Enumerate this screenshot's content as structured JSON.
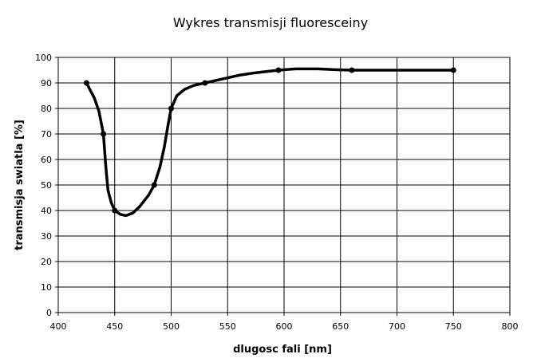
{
  "chart_data": {
    "type": "line",
    "title": "Wykres transmisji fluoresceiny",
    "xlabel": "dlugosc fali [nm]",
    "ylabel": "transmisja swiatla [%]",
    "xlim": [
      400,
      800
    ],
    "ylim": [
      0,
      100
    ],
    "x_ticks": [
      "400",
      "450",
      "500",
      "550",
      "600",
      "650",
      "700",
      "750",
      "800"
    ],
    "y_ticks": [
      "0",
      "10",
      "20",
      "30",
      "40",
      "50",
      "60",
      "70",
      "80",
      "90",
      "100"
    ],
    "grid": true,
    "legend": "none",
    "line_color": "#000000",
    "series": [
      {
        "markers": [
          {
            "x": 425,
            "y": 90
          },
          {
            "x": 440,
            "y": 70
          },
          {
            "x": 450,
            "y": 40
          },
          {
            "x": 485,
            "y": 50
          },
          {
            "x": 500,
            "y": 80
          },
          {
            "x": 530,
            "y": 90
          },
          {
            "x": 595,
            "y": 95
          },
          {
            "x": 660,
            "y": 95
          },
          {
            "x": 750,
            "y": 95
          }
        ],
        "curve": [
          {
            "x": 425,
            "y": 90
          },
          {
            "x": 432,
            "y": 84
          },
          {
            "x": 436,
            "y": 79
          },
          {
            "x": 440,
            "y": 70
          },
          {
            "x": 442,
            "y": 58
          },
          {
            "x": 444,
            "y": 48
          },
          {
            "x": 447,
            "y": 43
          },
          {
            "x": 450,
            "y": 40
          },
          {
            "x": 455,
            "y": 38.5
          },
          {
            "x": 460,
            "y": 38
          },
          {
            "x": 466,
            "y": 39
          },
          {
            "x": 472,
            "y": 41.5
          },
          {
            "x": 480,
            "y": 46
          },
          {
            "x": 485,
            "y": 50
          },
          {
            "x": 490,
            "y": 57
          },
          {
            "x": 494,
            "y": 65
          },
          {
            "x": 497,
            "y": 73
          },
          {
            "x": 500,
            "y": 80
          },
          {
            "x": 505,
            "y": 85
          },
          {
            "x": 512,
            "y": 87.5
          },
          {
            "x": 520,
            "y": 89
          },
          {
            "x": 530,
            "y": 90
          },
          {
            "x": 545,
            "y": 91.5
          },
          {
            "x": 560,
            "y": 93
          },
          {
            "x": 575,
            "y": 94
          },
          {
            "x": 595,
            "y": 95
          },
          {
            "x": 610,
            "y": 95.5
          },
          {
            "x": 630,
            "y": 95.5
          },
          {
            "x": 645,
            "y": 95.2
          },
          {
            "x": 660,
            "y": 95
          },
          {
            "x": 700,
            "y": 95
          },
          {
            "x": 750,
            "y": 95
          }
        ]
      }
    ]
  }
}
